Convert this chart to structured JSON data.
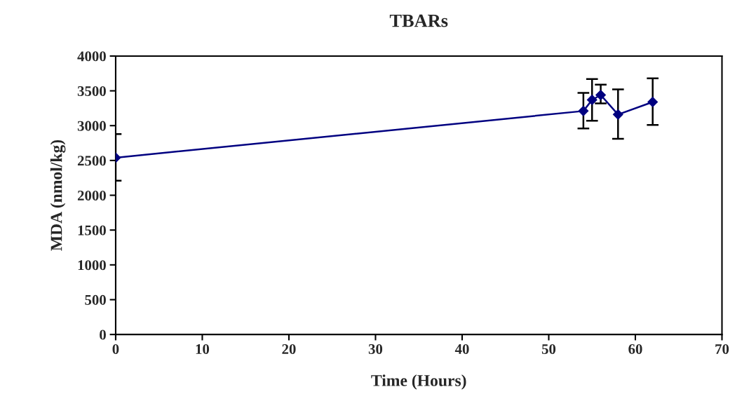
{
  "chart_data": {
    "type": "line",
    "title": "TBARs",
    "xlabel": "Time (Hours)",
    "ylabel": "MDA (nmol/kg)",
    "x": [
      0,
      54,
      55,
      56,
      58,
      62
    ],
    "series": [
      {
        "color": "#000080",
        "values": [
          2540,
          3210,
          3370,
          3440,
          3160,
          3340
        ],
        "errors": [
          [
            2210,
            2880
          ],
          [
            2960,
            3470
          ],
          [
            3070,
            3670
          ],
          [
            3320,
            3590
          ],
          [
            2810,
            3520
          ],
          [
            3010,
            3680
          ]
        ]
      }
    ],
    "xlim": [
      0,
      70
    ],
    "xticks": [
      0,
      10,
      20,
      30,
      40,
      50,
      60,
      70
    ],
    "ylim": [
      0,
      4000
    ],
    "yticks": [
      0,
      500,
      1000,
      1500,
      2000,
      2500,
      3000,
      3500,
      4000
    ],
    "marker": "diamond",
    "line_style": "solid",
    "grid": false,
    "legend": false
  }
}
